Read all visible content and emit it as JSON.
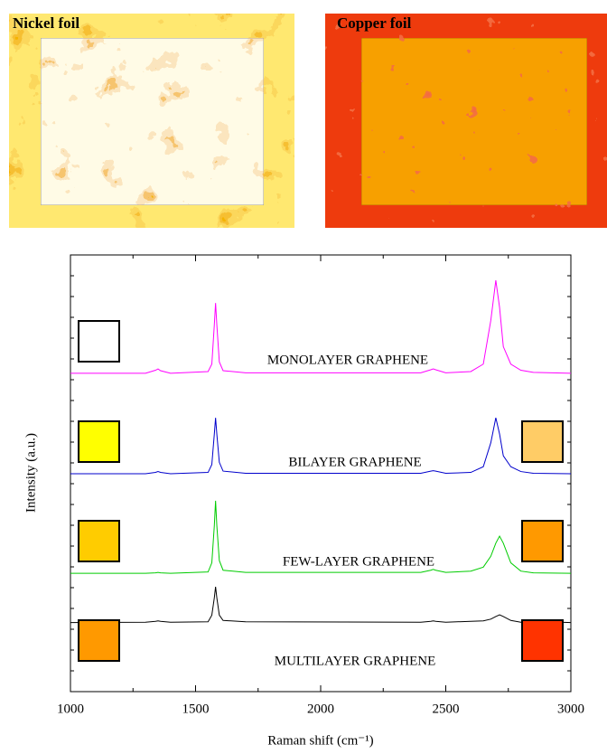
{
  "panels": [
    {
      "title": "Nickel foil"
    },
    {
      "title": "Copper foil"
    }
  ],
  "chart_data": {
    "type": "line",
    "x_label": "Raman shift (cm⁻¹)",
    "y_label": "Intensity (a.u.)",
    "x": [
      1000,
      1300,
      1340,
      1350,
      1360,
      1400,
      1550,
      1565,
      1575,
      1580,
      1585,
      1595,
      1610,
      1700,
      2400,
      2440,
      2450,
      2460,
      2500,
      2600,
      2650,
      2680,
      2700,
      2715,
      2730,
      2760,
      2800,
      2850,
      3000
    ],
    "series": [
      {
        "name": "MONOLAYER GRAPHENE",
        "color": "#ff00ff",
        "swatches": [
          "#ffffff",
          null
        ],
        "values": [
          72.9,
          72.9,
          73.6,
          73.9,
          73.5,
          72.9,
          73.3,
          75,
          84,
          89,
          84,
          75.5,
          73.5,
          73,
          73,
          73.7,
          73.9,
          73.7,
          73,
          73.3,
          75,
          85,
          94.2,
          88,
          79,
          75,
          73.6,
          73.1,
          72.9
        ]
      },
      {
        "name": "BILAYER GRAPHENE",
        "color": "#0000cc",
        "swatches": [
          "#ffff00",
          "#ffcc66"
        ],
        "values": [
          49.9,
          49.9,
          50.2,
          50.4,
          50.2,
          49.9,
          50.2,
          52,
          59,
          62.7,
          59,
          52.5,
          50.5,
          50,
          50,
          50.5,
          50.6,
          50.5,
          50,
          50.2,
          51.5,
          57,
          62.7,
          59,
          54,
          51.5,
          50.4,
          50,
          49.9
        ]
      },
      {
        "name": "FEW-LAYER GRAPHENE",
        "color": "#00cc00",
        "swatches": [
          "#ffcc00",
          "#ff9900"
        ],
        "values": [
          27.1,
          27.1,
          27.2,
          27.3,
          27.2,
          27.1,
          27.4,
          29.5,
          38,
          43.7,
          38,
          30,
          27.8,
          27.3,
          27.3,
          27.8,
          28,
          27.8,
          27.3,
          27.6,
          28.5,
          31,
          34,
          35.6,
          34,
          29.5,
          27.6,
          27.2,
          27.1
        ]
      },
      {
        "name": "MULTILAYER GRAPHENE",
        "color": "#000000",
        "swatches": [
          "#ff9900",
          "#ff3300"
        ],
        "values": [
          15.8,
          15.9,
          16.1,
          16.2,
          16.1,
          15.9,
          16,
          17.5,
          21.5,
          24,
          21.5,
          17.5,
          16.3,
          16,
          15.9,
          16.1,
          16.2,
          16.1,
          15.9,
          16.1,
          16.2,
          16.6,
          17.2,
          17.6,
          17.2,
          16.3,
          15.9,
          16.1,
          15.8
        ]
      }
    ],
    "xlim": [
      1000,
      3000
    ],
    "xticks": [
      1000,
      1500,
      2000,
      2500,
      3000
    ],
    "ylim": [
      0,
      100
    ]
  }
}
